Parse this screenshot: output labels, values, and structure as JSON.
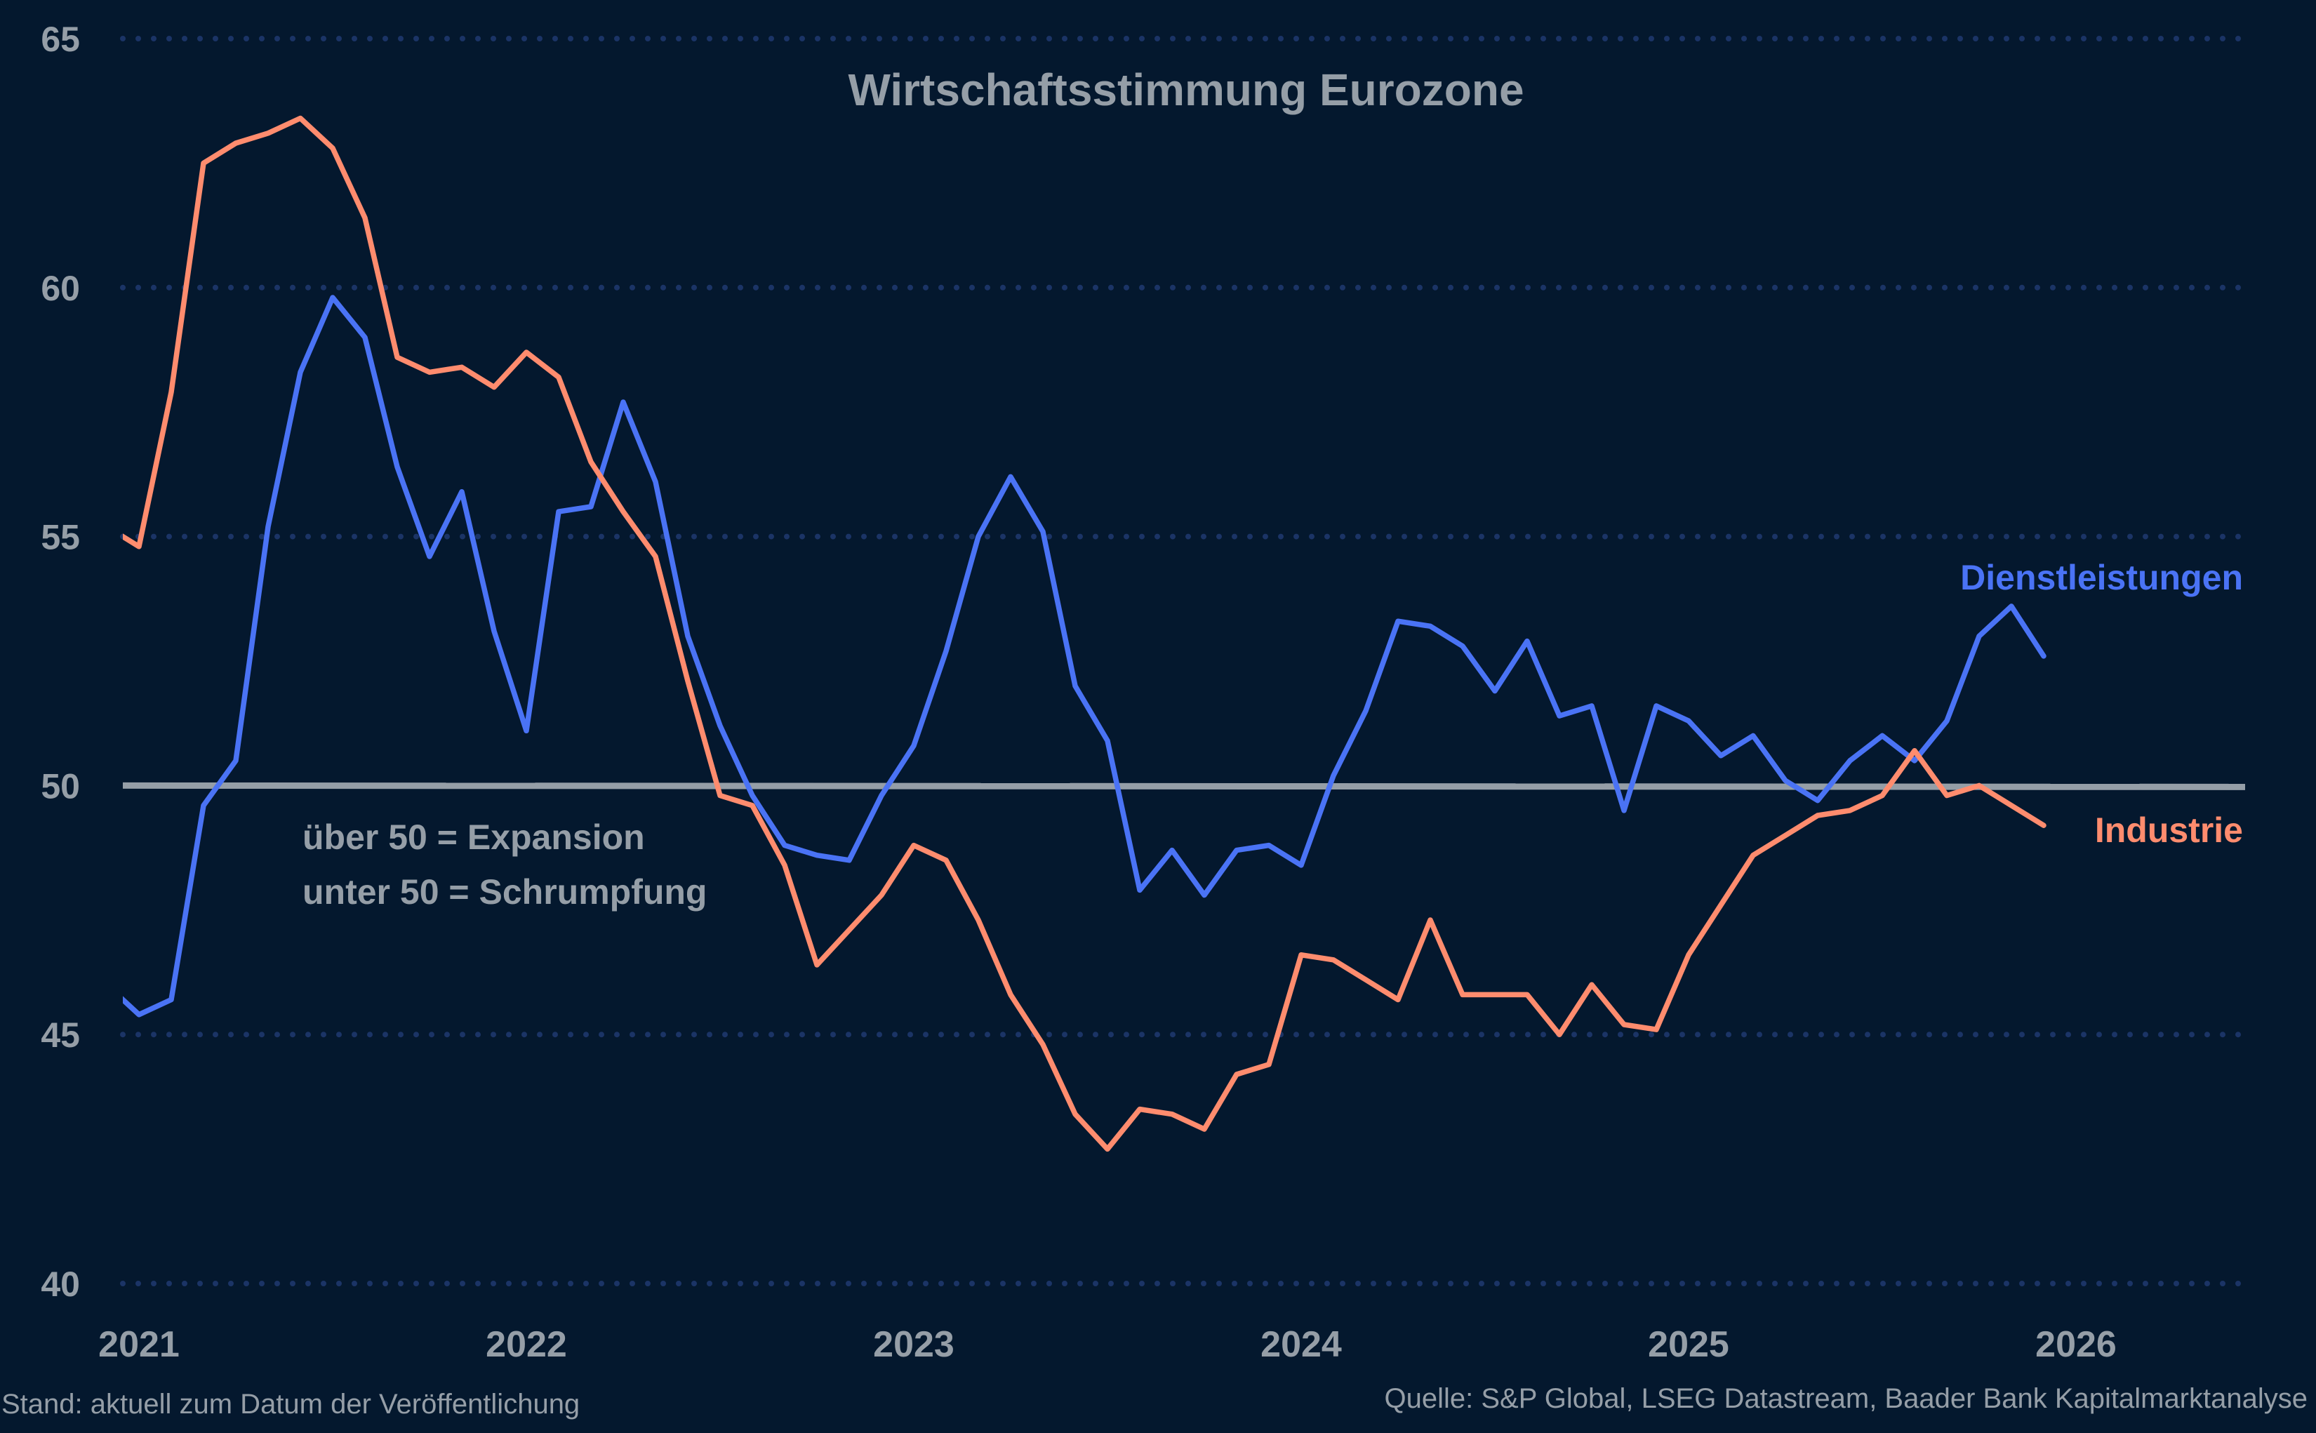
{
  "chart_data": {
    "type": "line",
    "title": "Wirtschaftsstimmung Eurozone",
    "xlabel": "",
    "ylabel": "",
    "ylim": [
      40,
      65
    ],
    "yticks": [
      40,
      45,
      50,
      55,
      60,
      65
    ],
    "xticks": [
      "2021",
      "2022",
      "2023",
      "2024",
      "2025",
      "2026"
    ],
    "grid": "horizontal dotted",
    "reference_line": 50,
    "x": [
      "2020-12",
      "2021-01",
      "2021-02",
      "2021-03",
      "2021-04",
      "2021-05",
      "2021-06",
      "2021-07",
      "2021-08",
      "2021-09",
      "2021-10",
      "2021-11",
      "2021-12",
      "2022-01",
      "2022-02",
      "2022-03",
      "2022-04",
      "2022-05",
      "2022-06",
      "2022-07",
      "2022-08",
      "2022-09",
      "2022-10",
      "2022-11",
      "2022-12",
      "2023-01",
      "2023-02",
      "2023-03",
      "2023-04",
      "2023-05",
      "2023-06",
      "2023-07",
      "2023-08",
      "2023-09",
      "2023-10",
      "2023-11",
      "2023-12",
      "2024-01",
      "2024-02",
      "2024-03",
      "2024-04",
      "2024-05",
      "2024-06",
      "2024-07",
      "2024-08",
      "2024-09",
      "2024-10",
      "2024-11",
      "2024-12",
      "2025-01",
      "2025-02",
      "2025-03",
      "2025-04",
      "2025-05",
      "2025-06",
      "2025-07",
      "2025-08",
      "2025-09",
      "2025-10",
      "2025-11",
      "2025-12"
    ],
    "series": [
      {
        "name": "Dienstleistungen",
        "color": "#4a73f5",
        "values": [
          46.0,
          45.4,
          45.7,
          49.6,
          50.5,
          55.2,
          58.3,
          59.8,
          59.0,
          56.4,
          54.6,
          55.9,
          53.1,
          51.1,
          55.5,
          55.6,
          57.7,
          56.1,
          53.0,
          51.2,
          49.8,
          48.8,
          48.6,
          48.5,
          49.8,
          50.8,
          52.7,
          55.0,
          56.2,
          55.1,
          52.0,
          50.9,
          47.9,
          48.7,
          47.8,
          48.7,
          48.8,
          48.4,
          50.2,
          51.5,
          53.3,
          53.2,
          52.8,
          51.9,
          52.9,
          51.4,
          51.6,
          49.5,
          51.6,
          51.3,
          50.6,
          51.0,
          50.1,
          49.7,
          50.5,
          51.0,
          50.5,
          51.3,
          53.0,
          53.6,
          52.6
        ]
      },
      {
        "name": "Industrie",
        "color": "#ff8c6e",
        "values": [
          55.2,
          54.8,
          57.9,
          62.5,
          62.9,
          63.1,
          63.4,
          62.8,
          61.4,
          58.6,
          58.3,
          58.4,
          58.0,
          58.7,
          58.2,
          56.5,
          55.5,
          54.6,
          52.1,
          49.8,
          49.6,
          48.4,
          46.4,
          47.1,
          47.8,
          48.8,
          48.5,
          47.3,
          45.8,
          44.8,
          43.4,
          42.7,
          43.5,
          43.4,
          43.1,
          44.2,
          44.4,
          46.6,
          46.5,
          46.1,
          45.7,
          47.3,
          45.8,
          45.8,
          45.8,
          45.0,
          46.0,
          45.2,
          45.1,
          46.6,
          47.6,
          48.6,
          49.0,
          49.4,
          49.5,
          49.8,
          50.7,
          49.8,
          50.0,
          49.6,
          49.2
        ]
      }
    ],
    "annotations": [
      "über 50 = Expansion",
      "unter 50 = Schrumpfung"
    ]
  },
  "footer": {
    "left": "Stand: aktuell zum Datum der Veröffentlichung",
    "right": "Quelle: S&P Global, LSEG Datastream, Baader Bank Kapitalmarktanalyse"
  },
  "colors": {
    "background": "#04182e",
    "grid": "#1b3466",
    "reference": "#959ea7",
    "text": "#959ea7"
  }
}
